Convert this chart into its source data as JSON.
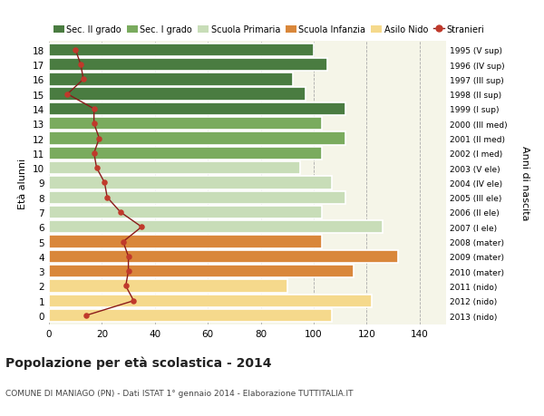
{
  "ages": [
    18,
    17,
    16,
    15,
    14,
    13,
    12,
    11,
    10,
    9,
    8,
    7,
    6,
    5,
    4,
    3,
    2,
    1,
    0
  ],
  "anni_nascita": [
    "1995 (V sup)",
    "1996 (IV sup)",
    "1997 (III sup)",
    "1998 (II sup)",
    "1999 (I sup)",
    "2000 (III med)",
    "2001 (II med)",
    "2002 (I med)",
    "2003 (V ele)",
    "2004 (IV ele)",
    "2005 (III ele)",
    "2006 (II ele)",
    "2007 (I ele)",
    "2008 (mater)",
    "2009 (mater)",
    "2010 (mater)",
    "2011 (nido)",
    "2012 (nido)",
    "2013 (nido)"
  ],
  "bar_values": [
    100,
    105,
    92,
    97,
    112,
    103,
    112,
    103,
    95,
    107,
    112,
    103,
    126,
    103,
    132,
    115,
    90,
    122,
    107
  ],
  "stranieri": [
    10,
    12,
    13,
    7,
    17,
    17,
    19,
    17,
    18,
    21,
    22,
    27,
    35,
    28,
    30,
    30,
    29,
    32,
    14
  ],
  "bar_colors_by_age": {
    "18": "#4a7c41",
    "17": "#4a7c41",
    "16": "#4a7c41",
    "15": "#4a7c41",
    "14": "#4a7c41",
    "13": "#7aab5e",
    "12": "#7aab5e",
    "11": "#7aab5e",
    "10": "#c8ddb8",
    "9": "#c8ddb8",
    "8": "#c8ddb8",
    "7": "#c8ddb8",
    "6": "#c8ddb8",
    "5": "#d9873b",
    "4": "#d9873b",
    "3": "#d9873b",
    "2": "#f5d98c",
    "1": "#f5d98c",
    "0": "#f5d98c"
  },
  "legend_labels": [
    "Sec. II grado",
    "Sec. I grado",
    "Scuola Primaria",
    "Scuola Infanzia",
    "Asilo Nido",
    "Stranieri"
  ],
  "legend_colors": [
    "#4a7c41",
    "#7aab5e",
    "#c8ddb8",
    "#d9873b",
    "#f5d98c",
    "#c0392b"
  ],
  "title": "Popolazione per età scolastica - 2014",
  "subtitle": "COMUNE DI MANIAGO (PN) - Dati ISTAT 1° gennaio 2014 - Elaborazione TUTTITALIA.IT",
  "ylabel": "Età alunni",
  "ylabel2": "Anni di nascita",
  "xlim": [
    0,
    150
  ],
  "xticks": [
    0,
    20,
    40,
    60,
    80,
    100,
    120,
    140
  ],
  "background_color": "#ffffff",
  "plot_bg_color": "#f5f5e8",
  "stranieri_color": "#c0392b",
  "stranieri_line_color": "#8b1a1a"
}
